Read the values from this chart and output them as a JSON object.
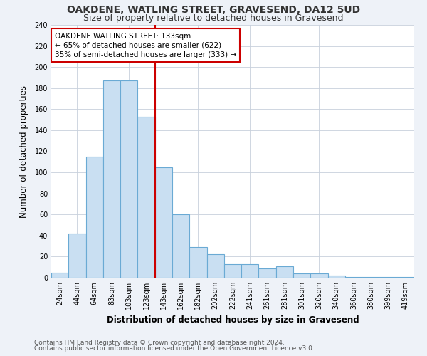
{
  "title": "OAKDENE, WATLING STREET, GRAVESEND, DA12 5UD",
  "subtitle": "Size of property relative to detached houses in Gravesend",
  "xlabel": "Distribution of detached houses by size in Gravesend",
  "ylabel": "Number of detached properties",
  "categories": [
    "24sqm",
    "44sqm",
    "64sqm",
    "83sqm",
    "103sqm",
    "123sqm",
    "143sqm",
    "162sqm",
    "182sqm",
    "202sqm",
    "222sqm",
    "241sqm",
    "261sqm",
    "281sqm",
    "301sqm",
    "320sqm",
    "340sqm",
    "360sqm",
    "380sqm",
    "399sqm",
    "419sqm"
  ],
  "values": [
    5,
    42,
    115,
    187,
    187,
    153,
    105,
    60,
    29,
    22,
    13,
    13,
    9,
    11,
    4,
    4,
    2,
    1,
    1,
    1,
    1
  ],
  "bar_color": "#c9dff2",
  "bar_edge_color": "#6aaad4",
  "annotation_text": "OAKDENE WATLING STREET: 133sqm\n← 65% of detached houses are smaller (622)\n35% of semi-detached houses are larger (333) →",
  "annotation_box_color": "#ffffff",
  "annotation_box_edge_color": "#cc0000",
  "vline_color": "#cc0000",
  "vline_x_index": 6,
  "ylim": [
    0,
    240
  ],
  "yticks": [
    0,
    20,
    40,
    60,
    80,
    100,
    120,
    140,
    160,
    180,
    200,
    220,
    240
  ],
  "footnote1": "Contains HM Land Registry data © Crown copyright and database right 2024.",
  "footnote2": "Contains public sector information licensed under the Open Government Licence v3.0.",
  "background_color": "#eef2f8",
  "plot_bg_color": "#ffffff",
  "grid_color": "#c8d0dc",
  "title_fontsize": 10,
  "subtitle_fontsize": 9,
  "tick_fontsize": 7,
  "label_fontsize": 8.5,
  "annotation_fontsize": 7.5,
  "footnote_fontsize": 6.5
}
